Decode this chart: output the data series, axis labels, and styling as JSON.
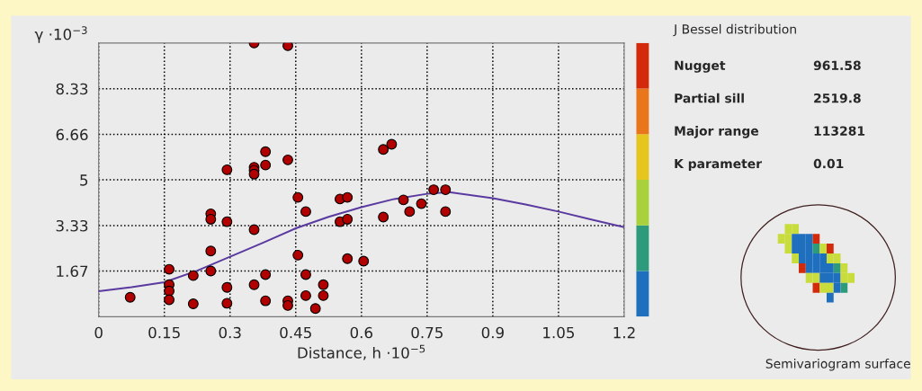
{
  "chart_data": [
    {
      "type": "scatter",
      "xlabel": "Distance, h ·10$^{−5}$",
      "ylabel": "γ ·10$^{−3}$",
      "xlim": [
        0,
        1.2
      ],
      "xticks": [
        0,
        0.15,
        0.3,
        0.45,
        0.6,
        0.75,
        0.9,
        1.05,
        1.2
      ],
      "ylim": [
        0,
        10
      ],
      "yticks": [
        1.67,
        3.33,
        5,
        6.66,
        8.33
      ],
      "grid": true,
      "series": [
        {
          "type": "scatter",
          "color": "#b00000",
          "marker": "circle",
          "x": [
            0.072,
            0.161,
            0.161,
            0.161,
            0.161,
            0.216,
            0.216,
            0.256,
            0.256,
            0.256,
            0.256,
            0.293,
            0.293,
            0.293,
            0.293,
            0.355,
            0.355,
            0.355,
            0.355,
            0.355,
            0.355,
            0.381,
            0.381,
            0.381,
            0.381,
            0.432,
            0.432,
            0.432,
            0.432,
            0.455,
            0.455,
            0.473,
            0.473,
            0.473,
            0.495,
            0.513,
            0.513,
            0.551,
            0.568,
            0.551,
            0.568,
            0.568,
            0.605,
            0.65,
            0.669,
            0.65,
            0.696,
            0.71,
            0.737,
            0.765,
            0.792,
            0.792
          ],
          "values": [
            0.71,
            1.73,
            1.17,
            0.94,
            0.62,
            1.5,
            0.47,
            3.76,
            3.56,
            2.4,
            1.67,
            5.37,
            3.47,
            1.07,
            0.49,
            10.0,
            5.46,
            5.35,
            5.21,
            3.18,
            1.17,
            6.03,
            5.54,
            1.54,
            0.58,
            9.9,
            5.73,
            0.58,
            0.41,
            4.36,
            2.25,
            3.84,
            1.54,
            0.77,
            0.3,
            1.17,
            0.77,
            4.3,
            4.36,
            3.47,
            3.56,
            2.12,
            2.03,
            6.11,
            6.3,
            3.64,
            4.27,
            3.84,
            4.13,
            4.64,
            4.64,
            3.84
          ]
        },
        {
          "type": "line",
          "color": "#5a3aa0",
          "line_style": "solid",
          "marker": "none",
          "x": [
            0,
            0.075,
            0.15,
            0.225,
            0.3,
            0.375,
            0.45,
            0.525,
            0.6,
            0.675,
            0.75,
            0.8,
            0.9,
            0.975,
            1.05,
            1.125,
            1.2
          ],
          "values": [
            0.93,
            1.08,
            1.26,
            1.68,
            2.19,
            2.7,
            3.23,
            3.65,
            4.0,
            4.3,
            4.49,
            4.55,
            4.33,
            4.1,
            3.84,
            3.55,
            3.27
          ]
        }
      ]
    },
    {
      "type": "other",
      "title": "J Bessel distribution",
      "annotations": [
        "Nugget",
        "961.58",
        "Partial sill",
        "2519.8",
        "Major range",
        "113281",
        "K parameter",
        "0.01",
        "Semivariogram surface"
      ]
    }
  ]
}
